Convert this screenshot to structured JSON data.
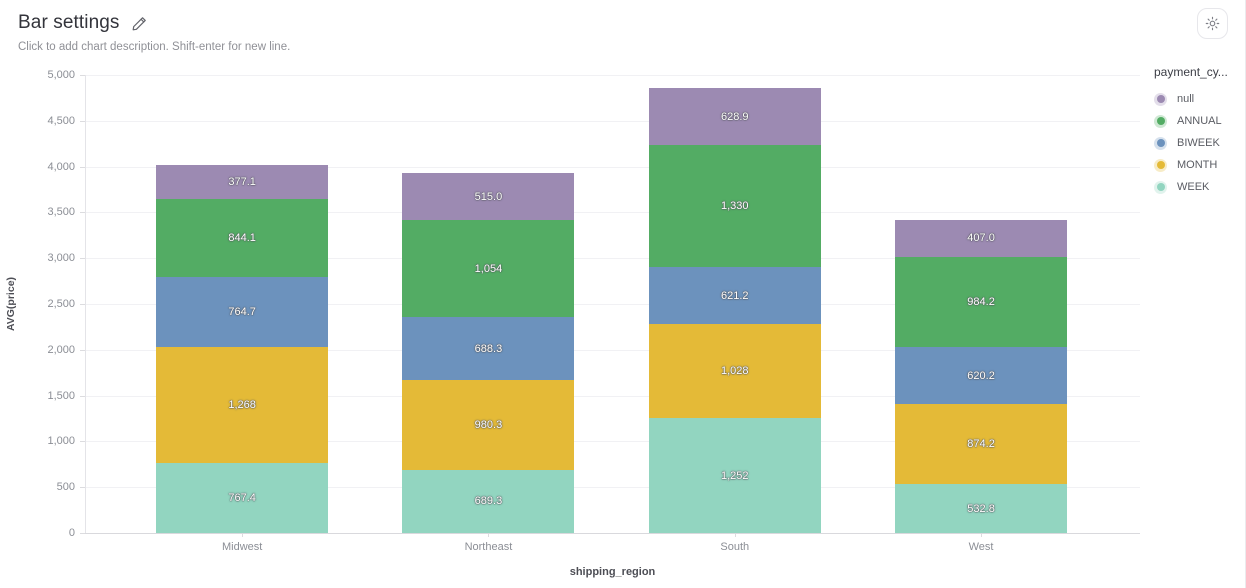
{
  "header": {
    "title": "Bar settings",
    "description_placeholder": "Click to add chart description. Shift-enter for new line."
  },
  "icons": {
    "edit": "pencil-icon",
    "settings": "gear-icon"
  },
  "chart_data": {
    "type": "bar",
    "stacked": true,
    "title": "Bar settings",
    "xlabel": "shipping_region",
    "ylabel": "AVG(price)",
    "categories": [
      "Midwest",
      "Northeast",
      "South",
      "West"
    ],
    "series": [
      {
        "name": "WEEK",
        "color": "#92d5c0",
        "values": [
          767.4,
          689.3,
          1252,
          532.8
        ],
        "labels": [
          "767.4",
          "689.3",
          "1,252",
          "532.8"
        ]
      },
      {
        "name": "MONTH",
        "color": "#e4ba37",
        "values": [
          1268,
          980.3,
          1028,
          874.2
        ],
        "labels": [
          "1,268",
          "980.3",
          "1,028",
          "874.2"
        ]
      },
      {
        "name": "BIWEEK",
        "color": "#6c92bd",
        "values": [
          764.7,
          688.3,
          621.2,
          620.2
        ],
        "labels": [
          "764.7",
          "688.3",
          "621.2",
          "620.2"
        ]
      },
      {
        "name": "ANNUAL",
        "color": "#53ac64",
        "values": [
          844.1,
          1054,
          1330,
          984.2
        ],
        "labels": [
          "844.1",
          "1,054",
          "1,330",
          "984.2"
        ]
      },
      {
        "name": "null",
        "color": "#9c8ab2",
        "values": [
          377.1,
          515.0,
          628.9,
          407.0
        ],
        "labels": [
          "377.1",
          "515.0",
          "628.9",
          "407.0"
        ]
      }
    ],
    "ylim": [
      0,
      5000
    ],
    "ytick_interval": 500,
    "grid": true,
    "legend": {
      "position": "right",
      "title": "payment_cy...",
      "items_order": [
        "null",
        "ANNUAL",
        "BIWEEK",
        "MONTH",
        "WEEK"
      ]
    }
  }
}
